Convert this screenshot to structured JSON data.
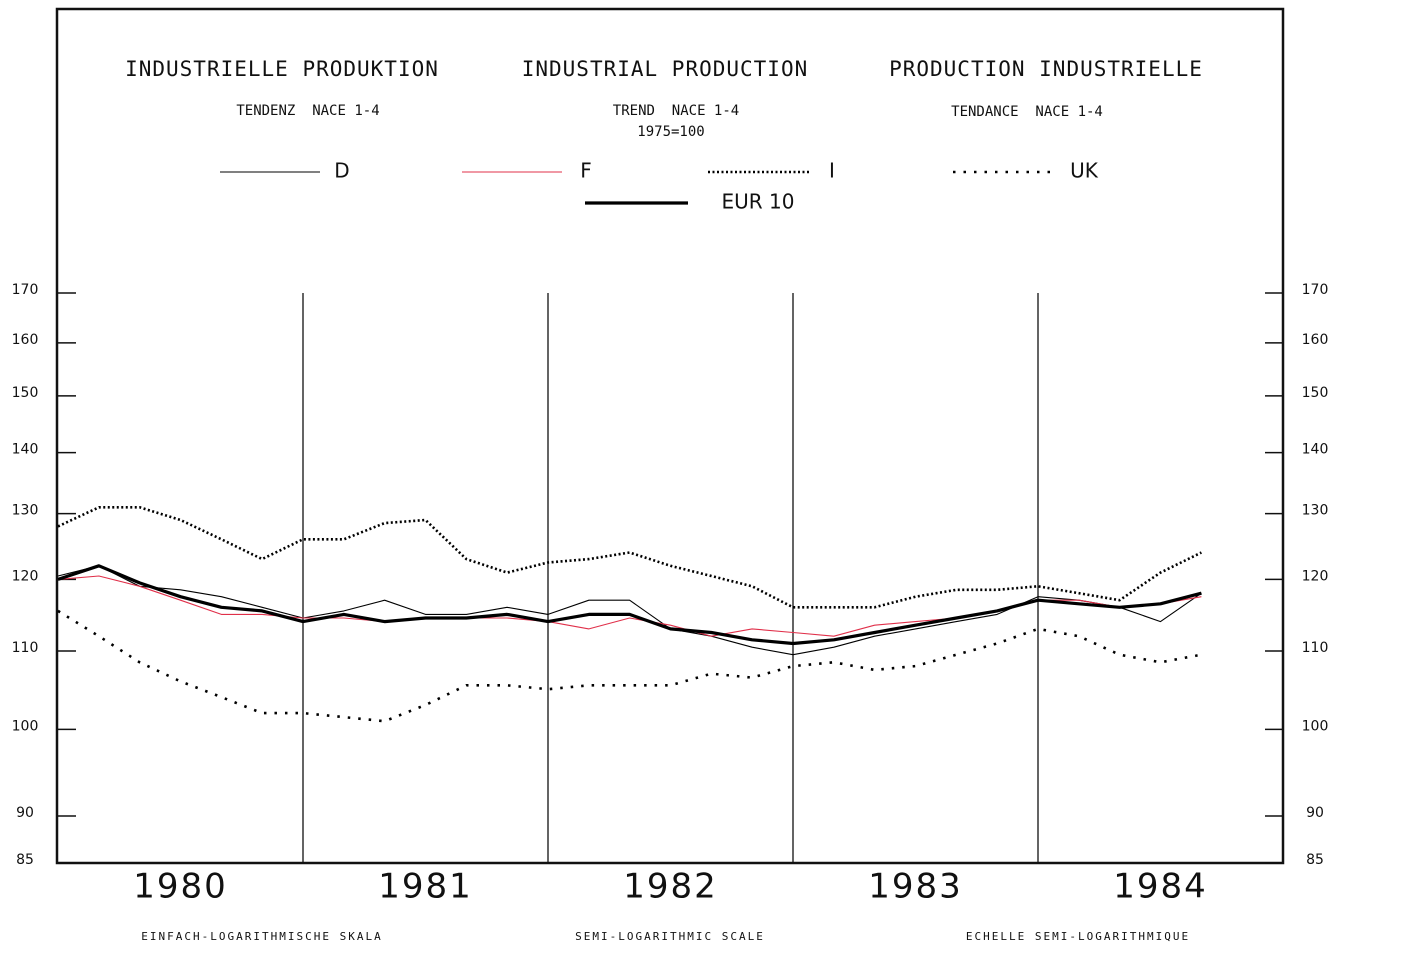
{
  "chart_data": {
    "type": "line",
    "titles": [
      "INDUSTRIELLE PRODUKTION",
      "INDUSTRIAL PRODUCTION",
      "PRODUCTION INDUSTRIELLE"
    ],
    "subtitles": [
      "TENDENZ  NACE 1-4",
      "TREND  NACE 1-4",
      "TENDANCE  NACE 1-4"
    ],
    "base_note": "1975=100",
    "footnotes": [
      "EINFACH-LOGARITHMISCHE SKALA",
      "SEMI-LOGARITHMIC SCALE",
      "ECHELLE SEMI-LOGARITHMIQUE"
    ],
    "y_log": true,
    "x": [
      1980,
      1980.167,
      1980.333,
      1980.5,
      1980.667,
      1980.833,
      1981,
      1981.167,
      1981.333,
      1981.5,
      1981.667,
      1981.833,
      1982,
      1982.167,
      1982.333,
      1982.5,
      1982.667,
      1982.833,
      1983,
      1983.167,
      1983.333,
      1983.5,
      1983.667,
      1983.833,
      1984,
      1984.167,
      1984.333,
      1984.5,
      1984.667
    ],
    "xlim": [
      1980,
      1985
    ],
    "xticks": [
      {
        "value": 1980.5,
        "label": "1980"
      },
      {
        "value": 1981.5,
        "label": "1981"
      },
      {
        "value": 1982.5,
        "label": "1982"
      },
      {
        "value": 1983.5,
        "label": "1983"
      },
      {
        "value": 1984.5,
        "label": "1984"
      }
    ],
    "year_lines": [
      1981,
      1982,
      1983,
      1984
    ],
    "ylim": [
      85,
      170
    ],
    "yticks": [
      85,
      90,
      100,
      110,
      120,
      130,
      140,
      150,
      160,
      170
    ],
    "series": [
      {
        "name": "D",
        "color": "#000000",
        "style": "thin",
        "values": [
          120.5,
          122,
          119,
          118.5,
          117.5,
          116,
          114.5,
          115.5,
          117,
          115,
          115,
          116,
          115,
          117,
          117,
          113,
          112,
          110.5,
          109.5,
          110.5,
          112,
          113,
          114,
          115,
          117.5,
          117,
          116,
          114,
          118
        ]
      },
      {
        "name": "F",
        "color": "#e0304a",
        "style": "thin",
        "values": [
          120,
          120.5,
          119,
          117,
          115,
          115,
          114.5,
          114.5,
          114,
          114.5,
          114.5,
          114.5,
          114,
          113,
          114.5,
          113.5,
          112,
          113,
          112.5,
          112,
          113.5,
          114,
          114.5,
          115.5,
          117,
          117,
          116,
          116.5,
          117.5
        ]
      },
      {
        "name": "I",
        "color": "#000000",
        "style": "dense",
        "values": [
          128,
          131,
          131,
          129,
          126,
          123,
          126,
          126,
          128.5,
          129,
          123,
          121,
          122.5,
          123,
          124,
          122,
          120.5,
          119,
          116,
          116,
          116,
          117.5,
          118.5,
          118.5,
          119,
          118,
          117,
          121,
          124
        ]
      },
      {
        "name": "UK",
        "color": "#000000",
        "style": "sparse",
        "values": [
          115.5,
          112,
          108.5,
          106,
          104,
          102,
          102,
          101.5,
          101,
          103,
          105.5,
          105.5,
          105,
          105.5,
          105.5,
          105.5,
          107,
          106.5,
          108,
          108.5,
          107.5,
          108,
          109.5,
          111,
          113,
          112,
          109.5,
          108.5,
          109.5
        ]
      },
      {
        "name": "EUR 10",
        "color": "#000000",
        "style": "thick",
        "values": [
          120,
          122,
          119.5,
          117.5,
          116,
          115.5,
          114,
          115,
          114,
          114.5,
          114.5,
          115,
          114,
          115,
          115,
          113,
          112.5,
          111.5,
          111,
          111.5,
          112.5,
          113.5,
          114.5,
          115.5,
          117,
          116.5,
          116,
          116.5,
          118
        ]
      }
    ]
  }
}
